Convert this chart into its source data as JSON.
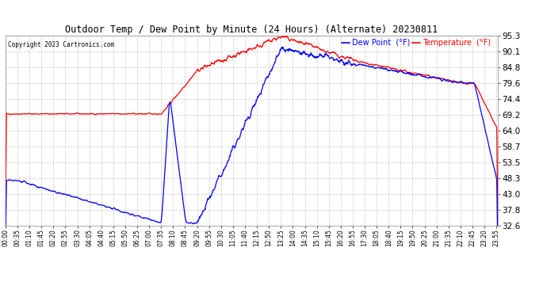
{
  "title": "Outdoor Temp / Dew Point by Minute (24 Hours) (Alternate) 20230811",
  "copyright": "Copyright 2023 Cartronics.com",
  "legend_dew": "Dew Point  (°F)",
  "legend_temp": "Temperature  (°F)",
  "dew_color": "blue",
  "temp_color": "red",
  "bg_color": "#ffffff",
  "grid_color": "#c8c8c8",
  "ylim_min": 32.6,
  "ylim_max": 95.3,
  "yticks": [
    32.6,
    37.8,
    43.0,
    48.3,
    53.5,
    58.7,
    64.0,
    69.2,
    74.4,
    79.6,
    84.8,
    90.1,
    95.3
  ],
  "total_minutes": 1440,
  "xtick_interval": 35
}
